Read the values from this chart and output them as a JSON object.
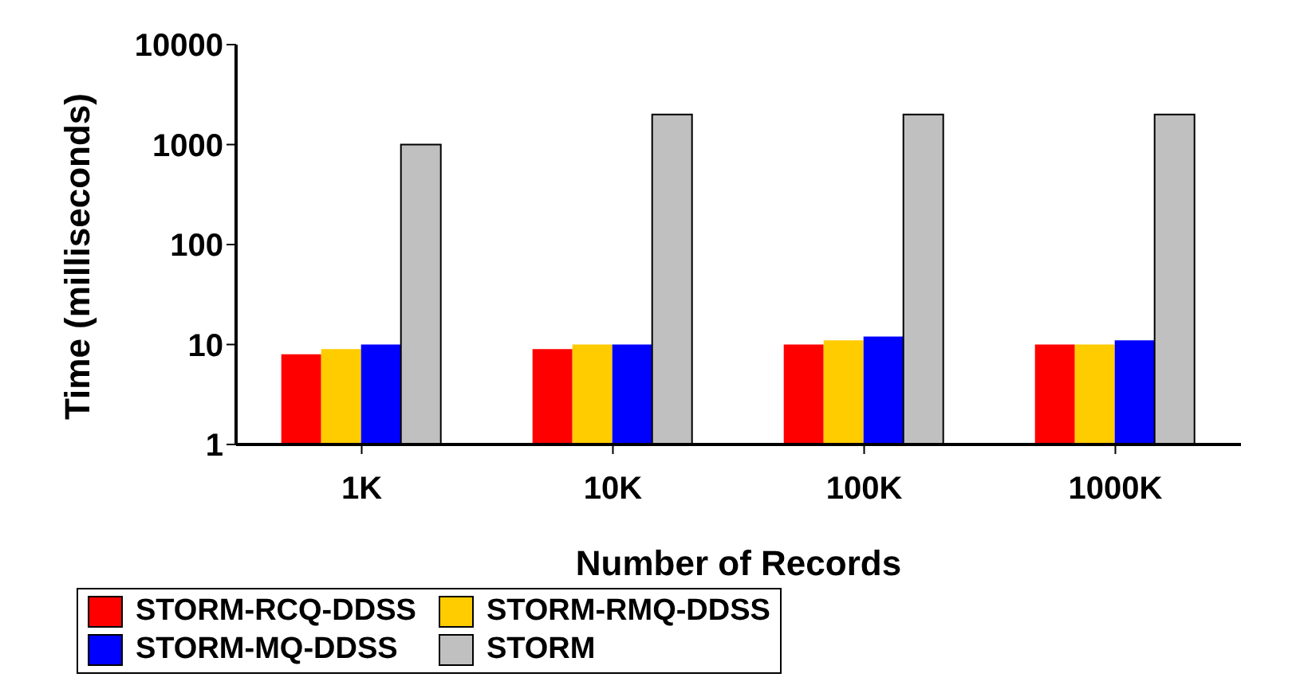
{
  "chart_data": {
    "type": "bar",
    "xlabel": "Number of Records",
    "ylabel": "Time (milliseconds)",
    "categories": [
      "1K",
      "10K",
      "100K",
      "1000K"
    ],
    "series": [
      {
        "name": "STORM-RCQ-DDSS",
        "color": "#ff0000",
        "values": [
          8,
          9,
          10,
          10
        ]
      },
      {
        "name": "STORM-RMQ-DDSS",
        "color": "#ffcc00",
        "values": [
          9,
          10,
          11,
          10
        ]
      },
      {
        "name": "STORM-MQ-DDSS",
        "color": "#0000ff",
        "values": [
          10,
          10,
          12,
          11
        ]
      },
      {
        "name": "STORM",
        "color": "#c0c0c0",
        "values": [
          1000,
          2000,
          2000,
          2000
        ]
      }
    ],
    "log": true,
    "ylim": [
      1,
      10000
    ],
    "yticks": [
      1,
      10,
      100,
      1000,
      10000
    ],
    "grid": false,
    "legend": "bottom"
  }
}
